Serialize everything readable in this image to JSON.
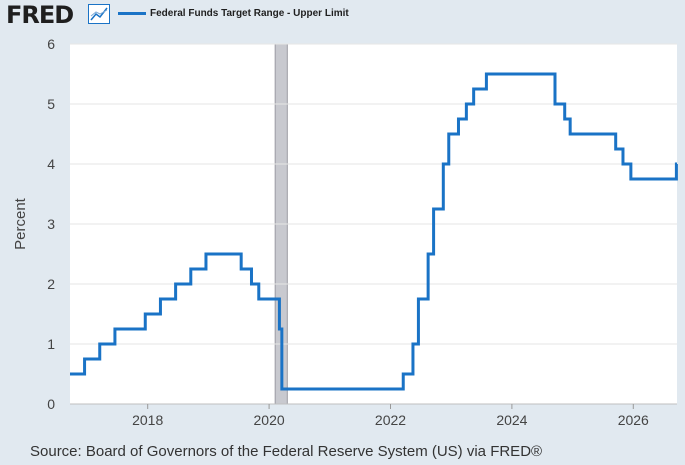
{
  "header": {
    "logo": "FRED",
    "logo_icon": "line-chart-icon"
  },
  "colors": {
    "line": "#1a73c6",
    "background": "#e1e9f0",
    "plot_bg": "#ffffff",
    "grid": "#e6e6e6",
    "recession": "#c8c9cf"
  },
  "source": "Source: Board of Governors of the Federal Reserve System (US) via FRED®",
  "chart_data": {
    "type": "line",
    "title": "",
    "xlabel": "",
    "ylabel": "Percent",
    "xlim": [
      2016.72,
      2026.72
    ],
    "ylim": [
      0,
      6
    ],
    "yticks": [
      0,
      1,
      2,
      3,
      4,
      5,
      6
    ],
    "xticks": [
      2018,
      2020,
      2022,
      2024,
      2026
    ],
    "grid": true,
    "legend_position": "top-left",
    "recessions": [
      [
        2020.1,
        2020.3
      ]
    ],
    "series": [
      {
        "name": "Federal Funds Target Range - Upper Limit",
        "step": true,
        "x": [
          2016.72,
          2016.96,
          2017.21,
          2017.46,
          2017.96,
          2018.21,
          2018.46,
          2018.71,
          2018.96,
          2019.54,
          2019.71,
          2019.83,
          2020.17,
          2020.21,
          2022.21,
          2022.37,
          2022.46,
          2022.62,
          2022.71,
          2022.87,
          2022.96,
          2023.12,
          2023.25,
          2023.37,
          2023.58,
          2024.71,
          2024.87,
          2024.96,
          2025.71,
          2025.83,
          2025.96,
          2026.71
        ],
        "y": [
          0.5,
          0.75,
          1.0,
          1.25,
          1.5,
          1.75,
          2.0,
          2.25,
          2.5,
          2.25,
          2.0,
          1.75,
          1.25,
          0.25,
          0.5,
          1.0,
          1.75,
          2.5,
          3.25,
          4.0,
          4.5,
          4.75,
          5.0,
          5.25,
          5.5,
          5.0,
          4.75,
          4.5,
          4.25,
          4.0,
          3.75,
          4.0
        ]
      }
    ]
  }
}
